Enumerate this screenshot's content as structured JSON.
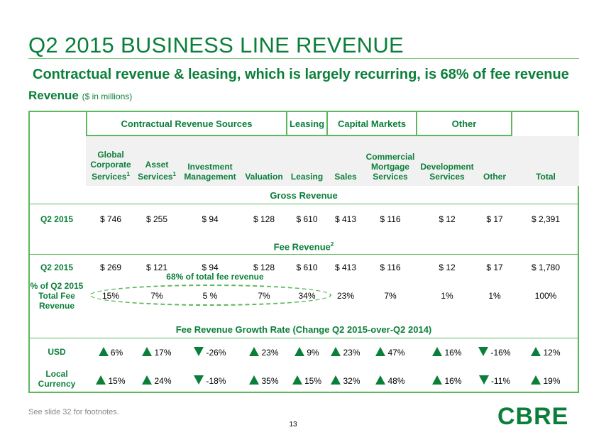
{
  "title": "Q2 2015 BUSINESS LINE REVENUE",
  "subtitle": "Contractual revenue & leasing, which is largely recurring, is 68% of fee revenue",
  "revenue_label": {
    "main": "Revenue",
    "note": "($ in millions)"
  },
  "groups": [
    "Contractual Revenue Sources",
    "Leasing",
    "Capital Markets",
    "Other"
  ],
  "columns": [
    {
      "line1": "Global",
      "line2": "Corporate",
      "line3": "Services",
      "sup": "1"
    },
    {
      "line1": "Asset",
      "line2": "Services",
      "line3": "",
      "sup": "1"
    },
    {
      "line1": "Investment",
      "line2": "Management",
      "line3": "",
      "sup": ""
    },
    {
      "line1": "Valuation",
      "line2": "",
      "line3": "",
      "sup": ""
    },
    {
      "line1": "Leasing",
      "line2": "",
      "line3": "",
      "sup": ""
    },
    {
      "line1": "Sales",
      "line2": "",
      "line3": "",
      "sup": ""
    },
    {
      "line1": "Commercial",
      "line2": "Mortgage",
      "line3": "Services",
      "sup": ""
    },
    {
      "line1": "Development",
      "line2": "Services",
      "line3": "",
      "sup": ""
    },
    {
      "line1": "Other",
      "line2": "",
      "line3": "",
      "sup": ""
    },
    {
      "line1": "Total",
      "line2": "",
      "line3": "",
      "sup": ""
    }
  ],
  "gross": {
    "heading": "Gross Revenue",
    "label": "Q2 2015",
    "values": [
      "$ 746",
      "$ 255",
      "$ 94",
      "$ 128",
      "$ 610",
      "$ 413",
      "$ 116",
      "$ 12",
      "$ 17",
      "$ 2,391"
    ]
  },
  "fee": {
    "heading": "Fee Revenue",
    "heading_sup": "2",
    "label": "Q2 2015",
    "values": [
      "$ 269",
      "$ 121",
      "$ 94",
      "$ 128",
      "$ 610",
      "$ 413",
      "$ 116",
      "$ 12",
      "$ 17",
      "$ 1,780"
    ],
    "pct_label": {
      "line1": "% of Q2 2015",
      "line2": "Total Fee",
      "line3": "Revenue"
    },
    "pct_values": [
      "15%",
      "7%",
      "5 %",
      "7%",
      "34%",
      "23%",
      "7%",
      "1%",
      "1%",
      "100%"
    ],
    "callout": "68% of total fee revenue"
  },
  "growth": {
    "heading": "Fee Revenue Growth Rate (Change Q2 2015-over-Q2 2014)",
    "usd": {
      "label": "USD",
      "values": [
        "6%",
        "17%",
        "-26%",
        "23%",
        "9%",
        "23%",
        "47%",
        "16%",
        "-16%",
        "12%"
      ],
      "dirs": [
        "up",
        "up",
        "down",
        "up",
        "up",
        "up",
        "up",
        "up",
        "down",
        "up"
      ]
    },
    "local": {
      "label_line1": "Local",
      "label_line2": "Currency",
      "values": [
        "15%",
        "24%",
        "-18%",
        "35%",
        "15%",
        "32%",
        "48%",
        "16%",
        "-11%",
        "19%"
      ],
      "dirs": [
        "up",
        "up",
        "down",
        "up",
        "up",
        "up",
        "up",
        "up",
        "down",
        "up"
      ]
    }
  },
  "footnote": "See slide 32 for footnotes.",
  "page_number": "13",
  "logo": "CBRE",
  "colors": {
    "brand_green": "#0b7f3a",
    "border_green": "#5cb85c",
    "header_gray": "#f1f1f1"
  }
}
